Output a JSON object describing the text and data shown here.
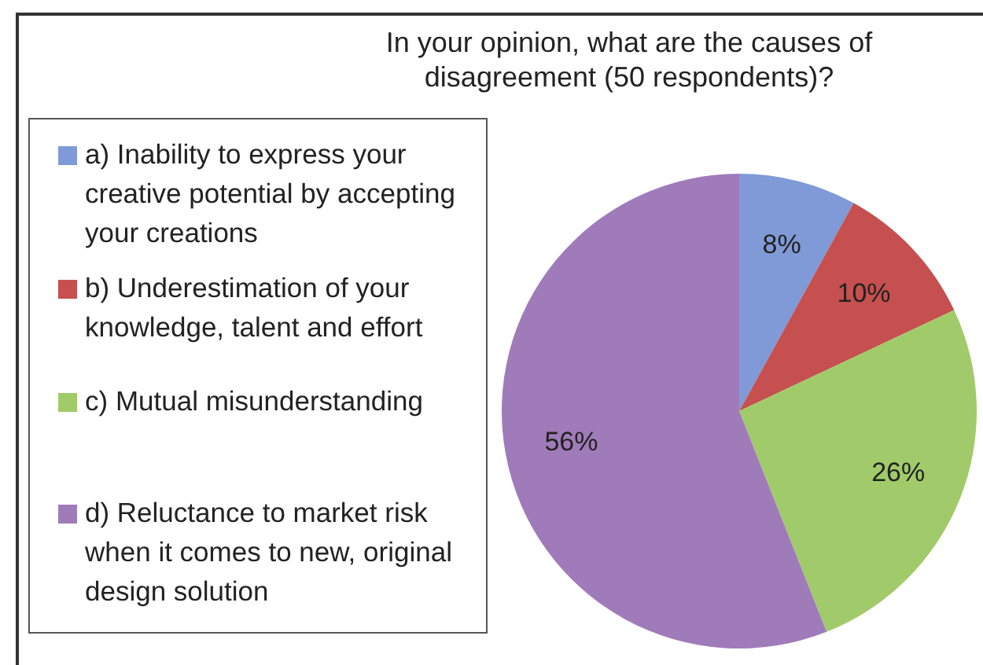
{
  "chart_data": {
    "type": "pie",
    "title": "In your opinion, what are the causes of disagreement (50 respondents)?",
    "categories": [
      "a) Inability to express your creative potential by accepting your creations",
      "b) Underestimation of your knowledge, talent and effort",
      "c) Mutual misunderstanding",
      "d) Reluctance to market risk when it comes to new, original design solution"
    ],
    "values": [
      8,
      10,
      26,
      56
    ],
    "colors": [
      "#7f9ad6",
      "#c5504f",
      "#a1cb6a",
      "#a07bb9"
    ],
    "value_labels": [
      "8%",
      "10%",
      "26%",
      "56%"
    ],
    "legend": "left"
  }
}
